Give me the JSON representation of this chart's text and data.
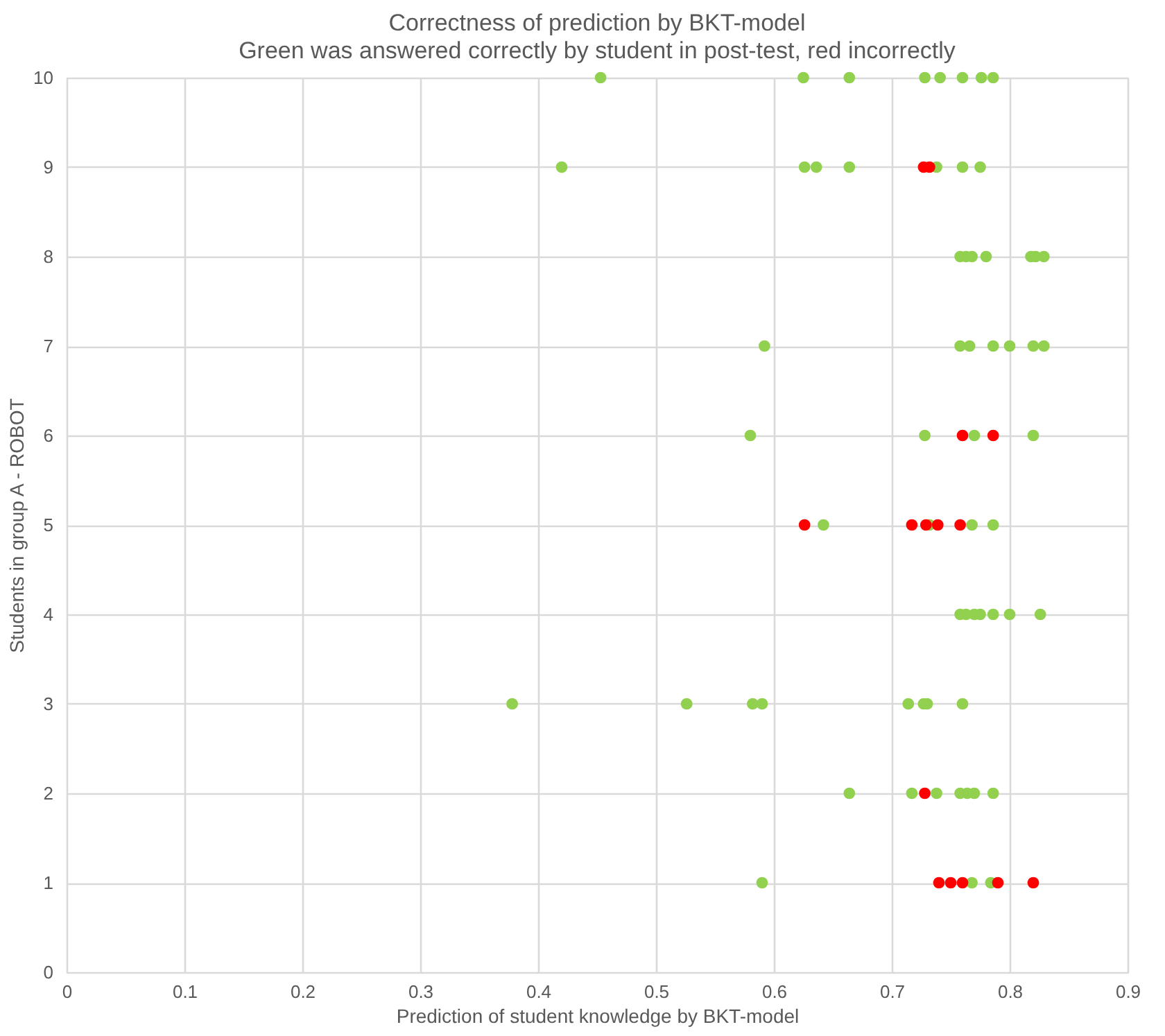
{
  "chart_data": {
    "type": "scatter",
    "title": "Correctness of prediction by BKT-model",
    "subtitle": "Green was answered correctly by student in post-test, red incorrectly",
    "xlabel": "Prediction of student knowledge by BKT-model",
    "ylabel": "Students in group A - ROBOT",
    "xlim": [
      0,
      0.9
    ],
    "xticks": [
      0,
      0.1,
      0.2,
      0.3,
      0.4,
      0.5,
      0.6,
      0.7,
      0.8,
      0.9
    ],
    "ylim": [
      0,
      10
    ],
    "yticks": [
      0,
      1,
      2,
      3,
      4,
      5,
      6,
      7,
      8,
      9,
      10
    ],
    "grid": true,
    "marker": "circle",
    "series": [
      {
        "color": "#92d050",
        "x": [
          0.453,
          0.625,
          0.664,
          0.728,
          0.741,
          0.76,
          0.776,
          0.786,
          0.42,
          0.626,
          0.636,
          0.664,
          0.738,
          0.76,
          0.775,
          0.758,
          0.763,
          0.768,
          0.78,
          0.818,
          0.822,
          0.829,
          0.592,
          0.758,
          0.766,
          0.786,
          0.8,
          0.82,
          0.829,
          0.58,
          0.728,
          0.77,
          0.82,
          0.642,
          0.732,
          0.768,
          0.786,
          0.758,
          0.763,
          0.77,
          0.775,
          0.786,
          0.8,
          0.826,
          0.378,
          0.526,
          0.582,
          0.59,
          0.714,
          0.727,
          0.73,
          0.76,
          0.664,
          0.717,
          0.738,
          0.758,
          0.764,
          0.77,
          0.786,
          0.59,
          0.768,
          0.784
        ],
        "values": [
          10,
          10,
          10,
          10,
          10,
          10,
          10,
          10,
          9,
          9,
          9,
          9,
          9,
          9,
          9,
          8,
          8,
          8,
          8,
          8,
          8,
          8,
          7,
          7,
          7,
          7,
          7,
          7,
          7,
          6,
          6,
          6,
          6,
          5,
          5,
          5,
          5,
          4,
          4,
          4,
          4,
          4,
          4,
          4,
          3,
          3,
          3,
          3,
          3,
          3,
          3,
          3,
          2,
          2,
          2,
          2,
          2,
          2,
          2,
          1,
          1,
          1
        ]
      },
      {
        "color": "#ff0000",
        "x": [
          0.727,
          0.732,
          0.76,
          0.786,
          0.626,
          0.717,
          0.729,
          0.739,
          0.758,
          0.728,
          0.74,
          0.75,
          0.76,
          0.79,
          0.82
        ],
        "values": [
          9,
          9,
          6,
          6,
          5,
          5,
          5,
          5,
          5,
          2,
          1,
          1,
          1,
          1,
          1
        ]
      }
    ]
  }
}
